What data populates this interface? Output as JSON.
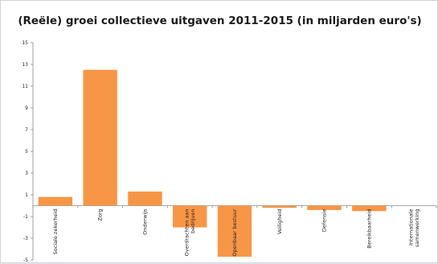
{
  "chart_data": {
    "type": "bar",
    "title": "(Reële) groei collectieve uitgaven 2011-2015 (in miljarden euro's)",
    "xlabel": "",
    "ylabel": "",
    "ylim": [
      -5,
      15
    ],
    "yticks": [
      15,
      13,
      11,
      9,
      7,
      5,
      3,
      1,
      -1,
      -3,
      -5
    ],
    "grid": false,
    "legend": "none",
    "bar_color": "#f79646",
    "categories": [
      [
        "Sociale zekerheid"
      ],
      [
        "Zorg"
      ],
      [
        "Onderwijs"
      ],
      [
        "Overdrachten aan",
        "bedrijven"
      ],
      [
        "Openbaar bestuur"
      ],
      [
        "Veiligheid"
      ],
      [
        "Defensie"
      ],
      [
        "Bereikbaarheid"
      ],
      [
        "Internationale",
        "samenwerking"
      ]
    ],
    "values": [
      0.8,
      12.5,
      1.3,
      -2.0,
      -4.7,
      -0.2,
      -0.4,
      -0.5,
      0.0
    ]
  }
}
